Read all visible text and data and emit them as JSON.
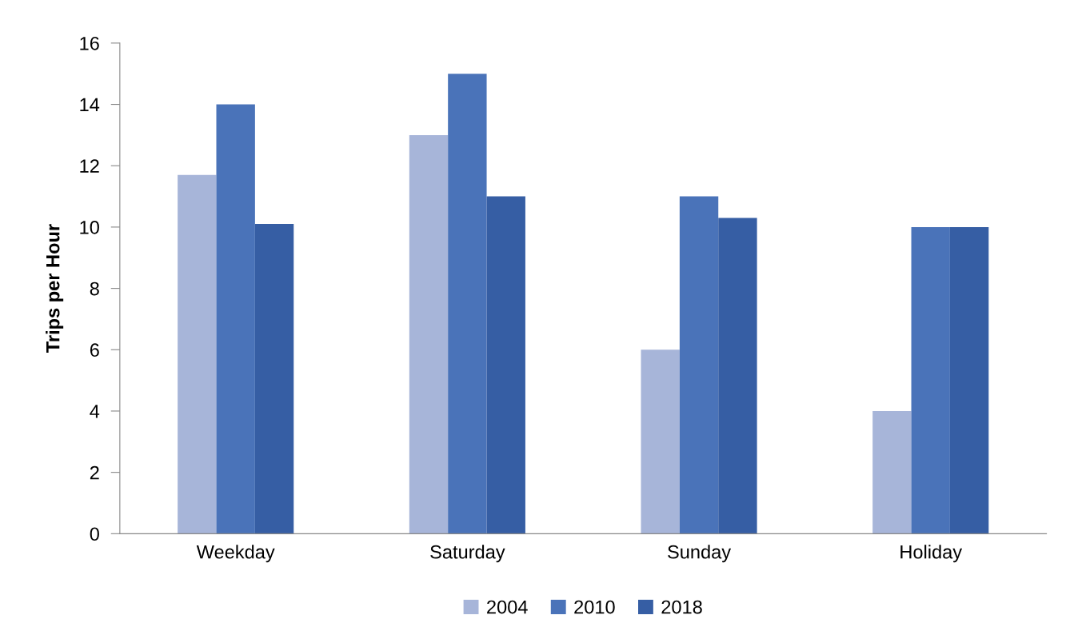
{
  "chart_data": {
    "type": "bar",
    "ylabel": "Trips per Hour",
    "categories": [
      "Weekday",
      "Saturday",
      "Sunday",
      "Holiday"
    ],
    "series": [
      {
        "name": "2004",
        "color": "#a7b5d9",
        "values": [
          11.7,
          13.0,
          6.0,
          4.0
        ]
      },
      {
        "name": "2010",
        "color": "#4a73b9",
        "values": [
          14.0,
          15.0,
          11.0,
          10.0
        ]
      },
      {
        "name": "2018",
        "color": "#365ea4",
        "values": [
          10.1,
          11.0,
          10.3,
          10.0
        ]
      }
    ],
    "ylim": [
      0,
      16
    ],
    "yticks": [
      0,
      2,
      4,
      6,
      8,
      10,
      12,
      14,
      16
    ],
    "grid": false,
    "legend": "bottom"
  }
}
